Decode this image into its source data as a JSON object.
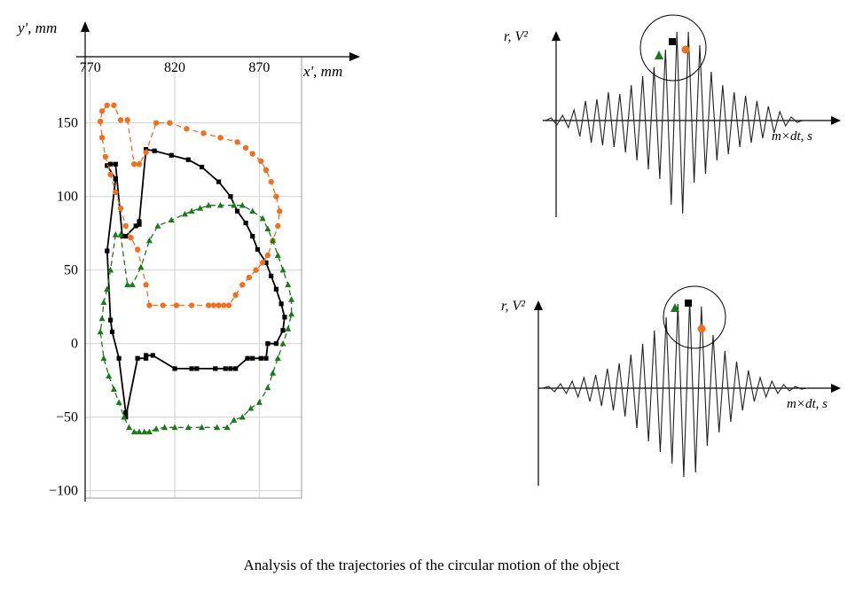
{
  "caption": "Analysis of the trajectories of the circular motion of the object",
  "colors": {
    "black": "#000000",
    "orange": "#f07020",
    "green": "#1a7a1a",
    "grid": "#d0d0d0",
    "signal": "#222222"
  },
  "chart_data": [
    {
      "type": "line",
      "xlabel": "x', mm",
      "ylabel": "y', mm",
      "xticks": [
        "770",
        "820",
        "870"
      ],
      "yticks": [
        "150",
        "100",
        "50",
        "0",
        "−50",
        "−100"
      ],
      "xlim": [
        767,
        895
      ],
      "ylim": [
        -105,
        195
      ],
      "grid": true,
      "series": [
        {
          "marker": "square",
          "color": "#000000",
          "dash": false,
          "x": [
            785,
            780,
            782,
            783,
            787,
            791,
            791,
            798,
            803,
            803,
            807,
            820,
            830,
            833,
            844,
            850,
            853,
            856,
            863,
            866,
            871,
            874,
            875,
            880,
            884,
            885,
            883,
            880,
            877,
            874,
            869,
            866,
            862,
            857,
            853,
            846,
            836,
            828,
            818,
            808,
            803,
            799,
            799,
            797,
            791,
            789,
            785,
            782,
            780,
            785
          ],
          "y": [
            112,
            63,
            16,
            8,
            -10,
            -47,
            -50,
            -10,
            -10,
            -8,
            -8,
            -17,
            -17,
            -17,
            -17,
            -17,
            -17,
            -17,
            -10,
            -10,
            -10,
            -10,
            0,
            0,
            9,
            18,
            27,
            37,
            46,
            55,
            64,
            73,
            82,
            90,
            100,
            110,
            120,
            125,
            128,
            131,
            132,
            83,
            81,
            80,
            73,
            73,
            122,
            122,
            121,
            112
          ]
        },
        {
          "marker": "circle",
          "color": "#f07020",
          "dash": true,
          "x": [
            780,
            777,
            776,
            777,
            779,
            782,
            785,
            788,
            791,
            794,
            798,
            803,
            805,
            813,
            821,
            830,
            840,
            843,
            846,
            849,
            852,
            856,
            860,
            864,
            868,
            872,
            875,
            878,
            881,
            882,
            880,
            877,
            874,
            871,
            866,
            862,
            857,
            847,
            837,
            827,
            817,
            809,
            803,
            799,
            796,
            792,
            788,
            784
          ],
          "y": [
            162,
            158,
            151,
            140,
            127,
            115,
            103,
            92,
            80,
            72,
            64,
            40,
            26,
            26,
            26,
            26,
            26,
            26,
            26,
            26,
            26,
            33,
            40,
            45,
            50,
            55,
            60,
            70,
            80,
            90,
            100,
            110,
            118,
            124,
            129,
            133,
            137,
            140,
            143,
            146,
            150,
            150,
            130,
            122,
            122,
            152,
            152,
            162
          ]
        },
        {
          "marker": "triangle",
          "color": "#1a7a1a",
          "dash": true,
          "x": [
            780,
            778,
            777,
            776,
            778,
            781,
            784,
            787,
            790,
            793,
            796,
            799,
            802,
            805,
            809,
            814,
            820,
            828,
            836,
            845,
            851,
            855,
            860,
            865,
            870,
            875,
            878,
            881,
            884,
            887,
            889,
            889,
            887,
            884,
            881,
            878,
            875,
            872,
            866,
            860,
            855,
            847,
            840,
            835,
            830,
            826,
            818,
            810,
            805,
            800,
            795,
            792,
            788,
            785,
            782,
            780
          ],
          "y": [
            37,
            28,
            17,
            8,
            -10,
            -22,
            -31,
            -40,
            -50,
            -57,
            -60,
            -60,
            -60,
            -60,
            -58,
            -57,
            -57,
            -57,
            -57,
            -57,
            -57,
            -52,
            -50,
            -44,
            -40,
            -30,
            -20,
            -10,
            0,
            10,
            20,
            30,
            40,
            50,
            60,
            70,
            78,
            85,
            90,
            94,
            94,
            94,
            94,
            92,
            90,
            88,
            84,
            80,
            70,
            52,
            40,
            40,
            74,
            74,
            50,
            37
          ]
        }
      ]
    },
    {
      "type": "line",
      "xlabel": "m×dt, s",
      "ylabel": "r, V²",
      "markers": [
        "triangle",
        "square",
        "circle"
      ],
      "values": [
        0,
        0.03,
        -0.05,
        0.06,
        -0.08,
        0.12,
        -0.18,
        0.22,
        -0.25,
        0.24,
        -0.28,
        0.32,
        -0.3,
        0.3,
        -0.36,
        0.4,
        -0.45,
        0.5,
        -0.55,
        0.6,
        -0.66,
        0.8,
        -0.95,
        1.0,
        -1.05,
        1.0,
        -0.7,
        0.85,
        -0.6,
        0.55,
        -0.45,
        0.4,
        -0.38,
        0.32,
        -0.3,
        0.28,
        -0.25,
        0.22,
        -0.2,
        0.16,
        -0.14,
        0.1,
        -0.06,
        0.04,
        -0.02,
        0
      ]
    },
    {
      "type": "line",
      "xlabel": "m×dt, s",
      "ylabel": "r, V²",
      "markers": [
        "triangle",
        "square",
        "circle"
      ],
      "values": [
        0,
        0.02,
        -0.04,
        0.05,
        -0.06,
        0.08,
        -0.1,
        0.12,
        -0.15,
        0.15,
        -0.2,
        0.22,
        -0.25,
        0.28,
        -0.32,
        0.38,
        -0.45,
        0.5,
        -0.6,
        0.65,
        -0.72,
        0.8,
        -0.85,
        0.95,
        -1.0,
        1.0,
        -0.95,
        0.92,
        -0.65,
        0.6,
        -0.5,
        0.42,
        -0.38,
        0.3,
        -0.25,
        0.2,
        -0.15,
        0.12,
        -0.1,
        0.08,
        -0.06,
        0.04,
        -0.03,
        0.02,
        -0.01,
        0
      ]
    }
  ]
}
